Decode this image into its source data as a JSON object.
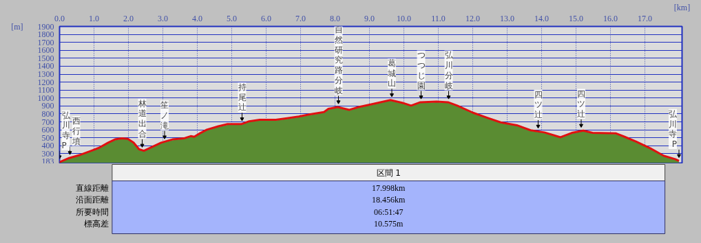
{
  "chart_data": {
    "type": "area",
    "xlabel": "[km]",
    "ylabel": "[m]",
    "x": [
      0,
      0.28,
      0.61,
      0.95,
      1.15,
      1.41,
      1.61,
      1.81,
      1.98,
      2.15,
      2.31,
      2.45,
      2.61,
      2.95,
      3.28,
      3.61,
      3.81,
      3.91,
      4.08,
      4.28,
      4.61,
      4.88,
      5.28,
      5.51,
      5.81,
      6.28,
      6.61,
      6.95,
      7.28,
      7.68,
      7.81,
      8.08,
      8.41,
      8.68,
      9.03,
      9.61,
      10.01,
      10.21,
      10.48,
      10.95,
      11.28,
      11.55,
      12.01,
      12.41,
      12.81,
      13.28,
      13.68,
      14.08,
      14.55,
      14.88,
      15.21,
      15.48,
      16.15,
      16.41,
      16.75,
      17.15,
      17.55,
      17.88,
      17.99
    ],
    "series": [
      {
        "color": "#5a8c32",
        "values": [
          195,
          240,
          280,
          335,
          365,
          430,
          470,
          485,
          480,
          430,
          350,
          330,
          362,
          430,
          470,
          485,
          512,
          505,
          548,
          595,
          636,
          662,
          662,
          700,
          718,
          718,
          738,
          760,
          788,
          815,
          855,
          878,
          842,
          878,
          910,
          965,
          925,
          897,
          938,
          946,
          938,
          897,
          806,
          745,
          685,
          650,
          586,
          560,
          498,
          553,
          582,
          553,
          548,
          505,
          443,
          362,
          265,
          224,
          200
        ]
      },
      {
        "type": "line",
        "color": "#e01010",
        "values": [
          195,
          246,
          287,
          342,
          375,
          439,
          480,
          493,
          488,
          439,
          356,
          337,
          370,
          439,
          480,
          493,
          521,
          513,
          557,
          603,
          645,
          672,
          672,
          708,
          727,
          727,
          746,
          768,
          796,
          823,
          864,
          886,
          851,
          886,
          919,
          974,
          933,
          905,
          947,
          955,
          947,
          905,
          815,
          754,
          694,
          658,
          595,
          568,
          507,
          562,
          590,
          562,
          557,
          513,
          452,
          370,
          274,
          232,
          210
        ]
      }
    ],
    "xlim": [
      0,
      18.08
    ],
    "ylim": [
      183,
      1900
    ],
    "xticks": [
      {
        "value": 0,
        "label": "0.0"
      },
      {
        "value": 1,
        "label": "1.0"
      },
      {
        "value": 2,
        "label": "2.0"
      },
      {
        "value": 3,
        "label": "3.0"
      },
      {
        "value": 4,
        "label": "4.0"
      },
      {
        "value": 5,
        "label": "5.0"
      },
      {
        "value": 6,
        "label": "6.0"
      },
      {
        "value": 7,
        "label": "7.0"
      },
      {
        "value": 8,
        "label": "8.0"
      },
      {
        "value": 9,
        "label": "9.0"
      },
      {
        "value": 10,
        "label": "10.0"
      },
      {
        "value": 11,
        "label": "11.0"
      },
      {
        "value": 12,
        "label": "12.0"
      },
      {
        "value": 13,
        "label": "13.0"
      },
      {
        "value": 14,
        "label": "14.0"
      },
      {
        "value": 15,
        "label": "15.0"
      },
      {
        "value": 16,
        "label": "16.0"
      },
      {
        "value": 17,
        "label": "17.0"
      }
    ],
    "yticks": [
      183,
      300,
      400,
      500,
      600,
      700,
      800,
      900,
      1000,
      1100,
      1200,
      1300,
      1400,
      1500,
      1600,
      1700,
      1800,
      1900
    ],
    "grid": true,
    "annotations": [
      {
        "text": "弘川寺P",
        "x": 0,
        "y": 195
      },
      {
        "text": "西行墳",
        "x": 0.3,
        "y": 248
      },
      {
        "text": "林道出合",
        "x": 2.4,
        "y": 340
      },
      {
        "text": "笙ノ滝",
        "x": 3.05,
        "y": 445
      },
      {
        "text": "持尾辻",
        "x": 5.3,
        "y": 672
      },
      {
        "text": "自然研究路分岐",
        "x": 8.1,
        "y": 886
      },
      {
        "text": "葛城山",
        "x": 9.65,
        "y": 974
      },
      {
        "text": "つつじ園",
        "x": 10.5,
        "y": 947
      },
      {
        "text": "弘川分岐",
        "x": 11.3,
        "y": 947
      },
      {
        "text": "四ツ辻",
        "x": 13.9,
        "y": 580
      },
      {
        "text": "四ツ辻",
        "x": 15.15,
        "y": 590
      },
      {
        "text": "弘川寺P",
        "x": 17.99,
        "y": 210
      },
      "区間 1",
      "直線距離",
      "17.998km",
      "沿面距離",
      "18.456km",
      "所要時間",
      "06:51:47",
      "標高差",
      "10.575m"
    ]
  }
}
